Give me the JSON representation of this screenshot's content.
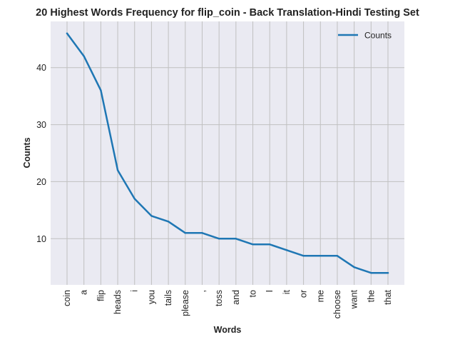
{
  "chart_data": {
    "type": "line",
    "title": "20 Highest Words Frequency for flip_coin - Back Translation-Hindi Testing Set",
    "xlabel": "Words",
    "ylabel": "Counts",
    "categories": [
      "coin",
      "a",
      "flip",
      "heads",
      "i",
      "you",
      "tails",
      "please",
      ",",
      "toss",
      "and",
      "to",
      "I",
      "it",
      "or",
      "me",
      "choose",
      "want",
      "the",
      "that"
    ],
    "series": [
      {
        "name": "Counts",
        "values": [
          46,
          42,
          36,
          22,
          17,
          14,
          13,
          11,
          11,
          10,
          10,
          9,
          9,
          8,
          7,
          7,
          7,
          5,
          4,
          4
        ]
      }
    ],
    "ylim": [
      1.9,
      48.1
    ],
    "yticks": [
      10,
      20,
      30,
      40
    ],
    "grid": true,
    "legend_position": "top-right",
    "colors": {
      "line": "#1f77b4",
      "plot_background": "#eaeaf2",
      "grid": "#c0c0c0"
    }
  }
}
